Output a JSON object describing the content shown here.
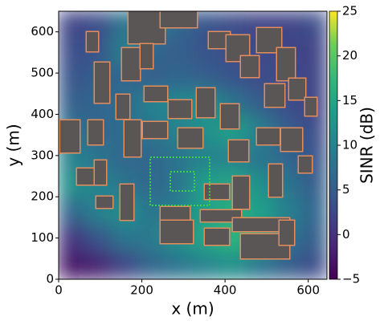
{
  "chart_data": {
    "type": "heatmap",
    "xlabel": "x (m)",
    "ylabel": "y (m)",
    "colorbar_label": "SINR (dB)",
    "xlim": [
      0,
      645
    ],
    "ylim": [
      0,
      650
    ],
    "xticks": [
      0,
      200,
      400,
      600
    ],
    "yticks": [
      0,
      100,
      200,
      300,
      400,
      500,
      600
    ],
    "clim": [
      -5,
      25
    ],
    "cticks": [
      {
        "value": -5,
        "label": "−5"
      },
      0,
      5,
      10,
      15,
      20,
      25
    ],
    "colormap": "viridis",
    "z": [
      [
        2,
        3,
        8,
        10,
        6,
        4,
        3,
        2,
        2,
        3
      ],
      [
        3,
        4,
        10,
        6,
        5,
        4,
        3,
        3,
        2,
        2
      ],
      [
        4,
        5,
        6,
        5,
        6,
        5,
        4,
        3,
        3,
        2
      ],
      [
        5,
        6,
        7,
        10,
        11,
        12,
        8,
        5,
        3,
        2
      ],
      [
        8,
        6,
        7,
        8,
        10,
        12,
        14,
        10,
        5,
        3
      ],
      [
        10,
        8,
        6,
        6,
        8,
        10,
        10,
        8,
        6,
        4
      ],
      [
        12,
        10,
        8,
        6,
        8,
        14,
        15,
        12,
        8,
        5
      ],
      [
        6,
        10,
        12,
        8,
        10,
        14,
        16,
        14,
        10,
        6
      ],
      [
        0,
        4,
        8,
        9,
        12,
        15,
        17,
        14,
        8,
        5
      ],
      [
        -3,
        -2,
        2,
        6,
        8,
        10,
        12,
        8,
        5,
        3
      ]
    ]
  }
}
